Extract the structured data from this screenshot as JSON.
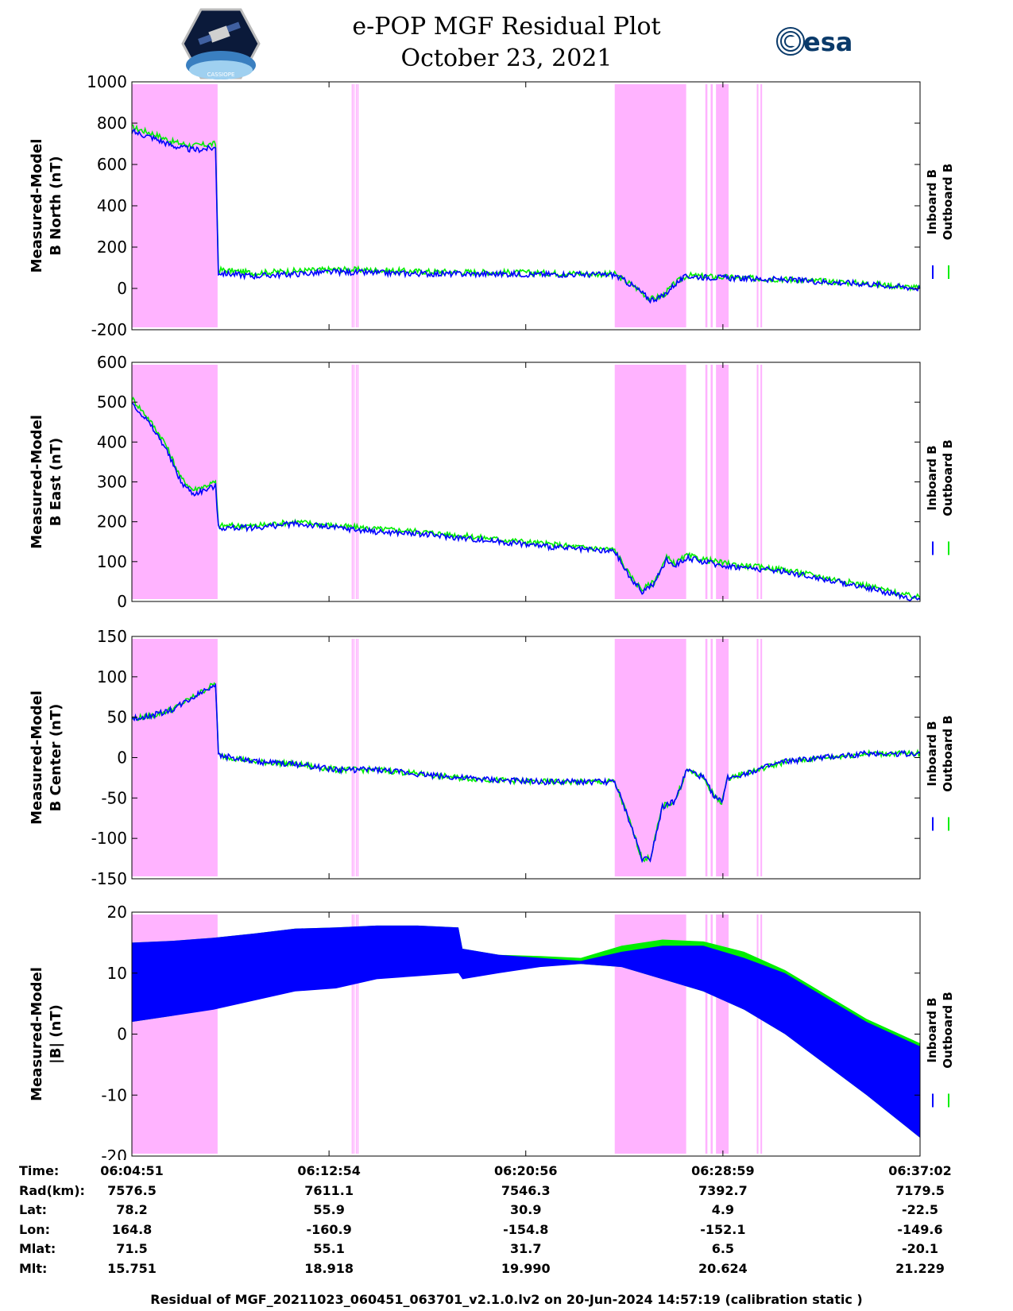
{
  "header": {
    "title_line1": "e-POP MGF Residual Plot",
    "title_line2": "October 23, 2021",
    "left_logo_text": "CASSIOPE",
    "right_logo_text": "esa"
  },
  "colors": {
    "shade": "#ffb3ff",
    "inboard": "#0000ff",
    "outboard": "#00ee00"
  },
  "chart_data": [
    {
      "type": "line",
      "ylabel": [
        "Measured-Model",
        "B North (nT)"
      ],
      "ylim": [
        -200,
        1000
      ],
      "yticks": [
        -200,
        0,
        200,
        400,
        600,
        800,
        1000
      ],
      "xlim": [
        0,
        1931
      ],
      "shaded_intervals": [
        [
          0,
          210
        ],
        [
          1183,
          1358
        ],
        [
          1405,
          1410
        ],
        [
          1418,
          1423
        ],
        [
          1431,
          1462
        ],
        [
          1531,
          1535
        ],
        [
          1540,
          1544
        ]
      ],
      "extra_lines": [
        [
          540,
          544
        ],
        [
          550,
          554
        ]
      ],
      "series": [
        {
          "name": "Inboard B",
          "x": [
            0,
            50,
            100,
            150,
            205,
            212,
            300,
            400,
            500,
            600,
            700,
            800,
            900,
            1000,
            1100,
            1183,
            1230,
            1270,
            1300,
            1330,
            1360,
            1400,
            1500,
            1600,
            1700,
            1800,
            1931
          ],
          "y": [
            760,
            730,
            690,
            670,
            680,
            75,
            60,
            70,
            80,
            75,
            72,
            70,
            70,
            68,
            68,
            65,
            10,
            -55,
            -40,
            20,
            60,
            55,
            48,
            42,
            32,
            22,
            0
          ]
        },
        {
          "name": "Outboard B",
          "x": [
            0,
            50,
            100,
            150,
            205,
            212,
            300,
            400,
            500,
            600,
            700,
            800,
            900,
            1000,
            1100,
            1183,
            1230,
            1270,
            1300,
            1330,
            1360,
            1400,
            1500,
            1600,
            1700,
            1800,
            1931
          ],
          "y": [
            780,
            750,
            710,
            690,
            700,
            90,
            75,
            85,
            92,
            88,
            82,
            80,
            78,
            75,
            72,
            68,
            12,
            -52,
            -37,
            24,
            63,
            58,
            50,
            44,
            34,
            24,
            2
          ]
        }
      ]
    },
    {
      "type": "line",
      "ylabel": [
        "Measured-Model",
        "B East (nT)"
      ],
      "ylim": [
        0,
        600
      ],
      "yticks": [
        0,
        100,
        200,
        300,
        400,
        500,
        600
      ],
      "xlim": [
        0,
        1931
      ],
      "shaded_intervals": [
        [
          0,
          210
        ],
        [
          1183,
          1358
        ],
        [
          1405,
          1410
        ],
        [
          1418,
          1423
        ],
        [
          1431,
          1462
        ],
        [
          1531,
          1535
        ],
        [
          1540,
          1544
        ]
      ],
      "extra_lines": [
        [
          540,
          544
        ],
        [
          550,
          554
        ]
      ],
      "series": [
        {
          "name": "Inboard B",
          "x": [
            0,
            40,
            80,
            120,
            150,
            180,
            205,
            212,
            300,
            400,
            500,
            600,
            700,
            800,
            900,
            1000,
            1100,
            1183,
            1220,
            1250,
            1280,
            1310,
            1330,
            1360,
            1400,
            1450,
            1500,
            1600,
            1700,
            1800,
            1900,
            1931
          ],
          "y": [
            500,
            450,
            390,
            300,
            270,
            280,
            290,
            185,
            185,
            195,
            185,
            175,
            170,
            160,
            150,
            140,
            130,
            125,
            60,
            25,
            45,
            105,
            90,
            110,
            100,
            90,
            85,
            75,
            55,
            35,
            10,
            5
          ]
        },
        {
          "name": "Outboard B",
          "x": [
            0,
            40,
            80,
            120,
            150,
            180,
            205,
            212,
            300,
            400,
            500,
            600,
            700,
            800,
            900,
            1000,
            1100,
            1183,
            1220,
            1250,
            1280,
            1310,
            1330,
            1360,
            1400,
            1450,
            1500,
            1600,
            1700,
            1800,
            1900,
            1931
          ],
          "y": [
            510,
            460,
            400,
            310,
            280,
            290,
            300,
            190,
            190,
            200,
            190,
            182,
            176,
            166,
            156,
            146,
            136,
            130,
            65,
            30,
            50,
            110,
            95,
            115,
            106,
            96,
            90,
            80,
            60,
            40,
            15,
            10
          ]
        }
      ]
    },
    {
      "type": "line",
      "ylabel": [
        "Measured-Model",
        "B Center (nT)"
      ],
      "ylim": [
        -150,
        150
      ],
      "yticks": [
        -150,
        -100,
        -50,
        0,
        50,
        100,
        150
      ],
      "xlim": [
        0,
        1931
      ],
      "shaded_intervals": [
        [
          0,
          210
        ],
        [
          1183,
          1358
        ],
        [
          1405,
          1410
        ],
        [
          1418,
          1423
        ],
        [
          1431,
          1462
        ],
        [
          1531,
          1535
        ],
        [
          1540,
          1544
        ]
      ],
      "extra_lines": [
        [
          540,
          544
        ],
        [
          550,
          554
        ]
      ],
      "series": [
        {
          "name": "Inboard B",
          "x": [
            0,
            50,
            100,
            150,
            205,
            212,
            300,
            400,
            500,
            600,
            700,
            800,
            900,
            1000,
            1100,
            1183,
            1220,
            1250,
            1270,
            1300,
            1330,
            1360,
            1400,
            1430,
            1445,
            1460,
            1500,
            1600,
            1700,
            1800,
            1931
          ],
          "y": [
            48,
            52,
            60,
            75,
            92,
            3,
            -5,
            -8,
            -15,
            -15,
            -20,
            -25,
            -28,
            -30,
            -30,
            -30,
            -80,
            -125,
            -125,
            -60,
            -55,
            -15,
            -25,
            -50,
            -55,
            -25,
            -20,
            -5,
            0,
            5,
            5
          ]
        },
        {
          "name": "Outboard B",
          "x": [
            0,
            50,
            100,
            150,
            205,
            212,
            300,
            400,
            500,
            600,
            700,
            800,
            900,
            1000,
            1100,
            1183,
            1220,
            1250,
            1270,
            1300,
            1330,
            1360,
            1400,
            1430,
            1445,
            1460,
            1500,
            1600,
            1700,
            1800,
            1931
          ],
          "y": [
            48,
            52,
            60,
            75,
            92,
            3,
            -5,
            -8,
            -15,
            -15,
            -20,
            -25,
            -28,
            -30,
            -30,
            -30,
            -80,
            -125,
            -125,
            -60,
            -55,
            -15,
            -25,
            -50,
            -55,
            -25,
            -20,
            -5,
            0,
            5,
            5
          ]
        }
      ]
    },
    {
      "type": "area",
      "ylabel": [
        "Measured-Model",
        "|B| (nT)"
      ],
      "ylim": [
        -20,
        20
      ],
      "yticks": [
        -20,
        -10,
        0,
        10,
        20
      ],
      "xlim": [
        0,
        1931
      ],
      "shaded_intervals": [
        [
          0,
          210
        ],
        [
          1183,
          1358
        ],
        [
          1405,
          1410
        ],
        [
          1418,
          1423
        ],
        [
          1431,
          1462
        ],
        [
          1531,
          1535
        ],
        [
          1540,
          1544
        ]
      ],
      "extra_lines": [
        [
          540,
          544
        ],
        [
          550,
          554
        ]
      ],
      "series": [
        {
          "name": "Inboard B",
          "x": [
            0,
            100,
            200,
            300,
            400,
            500,
            600,
            700,
            800,
            810,
            900,
            1000,
            1100,
            1200,
            1300,
            1400,
            1500,
            1600,
            1700,
            1800,
            1931
          ],
          "upper": [
            15,
            15.3,
            15.8,
            16.5,
            17.3,
            17.5,
            17.8,
            17.8,
            17.5,
            14,
            13,
            12.5,
            12,
            13.5,
            14.5,
            14.5,
            12.5,
            10,
            6,
            2,
            -2
          ],
          "lower": [
            2,
            3,
            4,
            5.5,
            7,
            7.5,
            9,
            9.5,
            10,
            9,
            10,
            11,
            11.5,
            11,
            9,
            7,
            4,
            0,
            -5,
            -10,
            -17
          ]
        },
        {
          "name": "Outboard B",
          "x": [
            0,
            100,
            200,
            300,
            400,
            500,
            600,
            700,
            800,
            810,
            900,
            1000,
            1100,
            1200,
            1300,
            1400,
            1500,
            1600,
            1700,
            1800,
            1931
          ],
          "upper": [
            15,
            15.3,
            15.8,
            16.5,
            17.3,
            17.5,
            17.8,
            17.8,
            17.5,
            14,
            13,
            12.8,
            12.5,
            14.5,
            15.5,
            15.2,
            13.5,
            10.5,
            6.5,
            2.5,
            -1.5
          ],
          "lower": [
            2,
            3,
            4.5,
            6,
            7.5,
            8,
            9.5,
            10,
            10.5,
            9.5,
            10.5,
            11.2,
            11.5,
            11,
            9,
            7,
            4,
            0,
            -5,
            -10,
            -17
          ]
        }
      ]
    }
  ],
  "x_ticks_seconds": [
    0,
    483,
    965,
    1448,
    1931
  ],
  "info_table": {
    "rows": [
      {
        "label": "Time:",
        "values": [
          "06:04:51",
          "06:12:54",
          "06:20:56",
          "06:28:59",
          "06:37:02"
        ]
      },
      {
        "label": "Rad(km):",
        "values": [
          "7576.5",
          "7611.1",
          "7546.3",
          "7392.7",
          "7179.5"
        ]
      },
      {
        "label": "Lat:",
        "values": [
          "78.2",
          "55.9",
          "30.9",
          "4.9",
          "-22.5"
        ]
      },
      {
        "label": "Lon:",
        "values": [
          "164.8",
          "-160.9",
          "-154.8",
          "-152.1",
          "-149.6"
        ]
      },
      {
        "label": "Mlat:",
        "values": [
          "71.5",
          "55.1",
          "31.7",
          "6.5",
          "-20.1"
        ]
      },
      {
        "label": "Mlt:",
        "values": [
          "15.751",
          "18.918",
          "19.990",
          "20.624",
          "21.229"
        ]
      }
    ]
  },
  "footer": "Residual of MGF_20211023_060451_063701_v2.1.0.lv2 on 20-Jun-2024 14:57:19 (calibration static )"
}
